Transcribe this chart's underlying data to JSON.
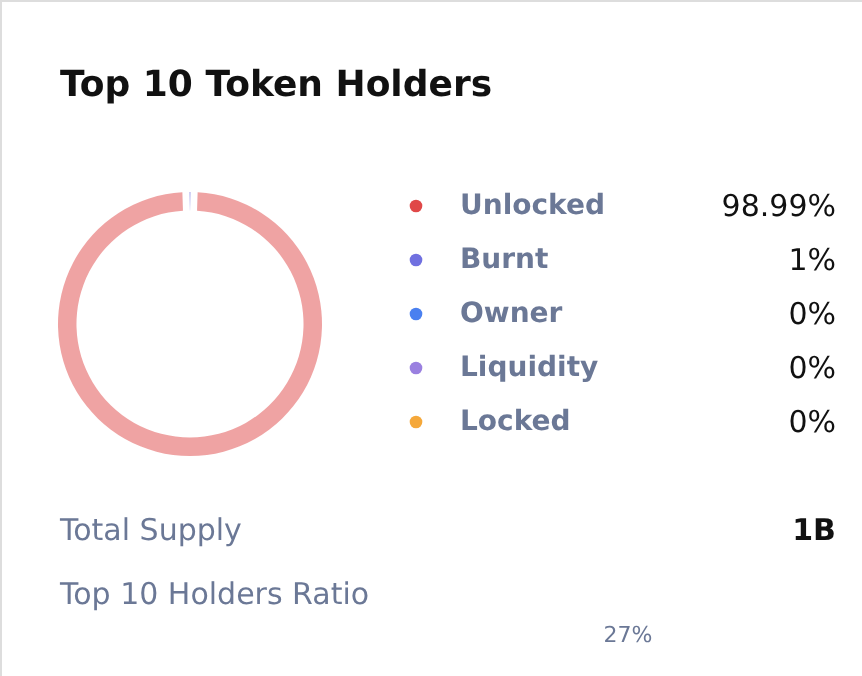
{
  "chart_data": {
    "type": "donut",
    "title": "Top 10 Token Holders",
    "categories": [
      "Unlocked",
      "Burnt",
      "Owner",
      "Liquidity",
      "Locked"
    ],
    "values": [
      98.99,
      1,
      0,
      0,
      0
    ],
    "colors": [
      "#e04848",
      "#7070e0",
      "#4a80f0",
      "#9a80e0",
      "#f5a83a"
    ],
    "value_labels": [
      "98.99%",
      "1%",
      "0%",
      "0%",
      "0%"
    ],
    "legend": "right",
    "annotations": [
      "Total Supply",
      "1B",
      "Top 10 Holders Ratio",
      "27%"
    ]
  }
}
